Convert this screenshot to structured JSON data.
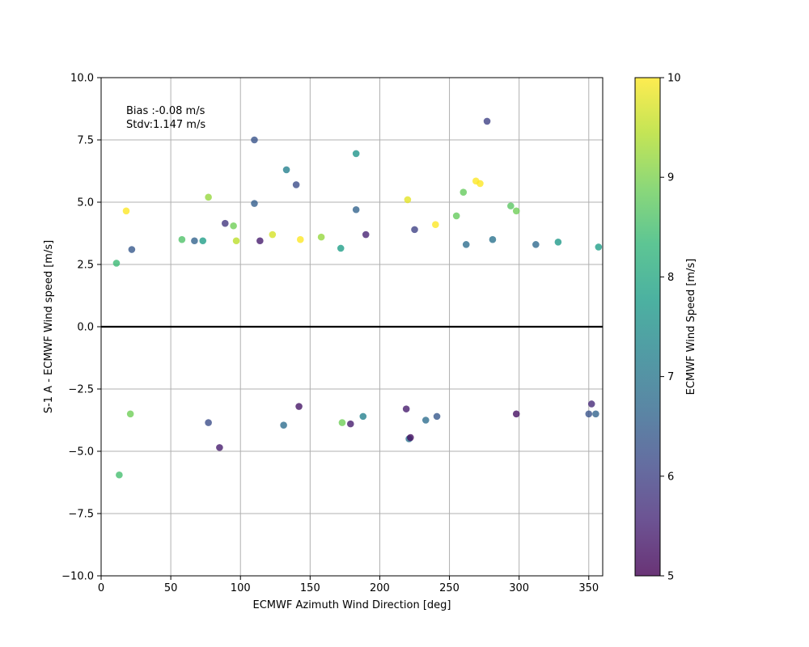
{
  "chart_data": {
    "type": "scatter",
    "xlabel": "ECMWF Azimuth Wind Direction [deg]",
    "ylabel": "S-1 A - ECMWF Wind speed [m/s]",
    "xlim": [
      0,
      360
    ],
    "ylim": [
      -10,
      10
    ],
    "x_ticks": [
      0,
      50,
      100,
      150,
      200,
      250,
      300,
      350
    ],
    "x_tick_labels": [
      "0",
      "50",
      "100",
      "150",
      "200",
      "250",
      "300",
      "350"
    ],
    "y_ticks": [
      -10,
      -7.5,
      -5,
      -2.5,
      0,
      2.5,
      5,
      7.5,
      10
    ],
    "y_tick_labels": [
      "−10.0",
      "−7.5",
      "−5.0",
      "−2.5",
      "0.0",
      "2.5",
      "5.0",
      "7.5",
      "10.0"
    ],
    "grid": true,
    "zero_line": 0,
    "annotations": {
      "bias": "Bias :-0.08 m/s",
      "stdv": "Stdv:1.147 m/s"
    },
    "colorbar": {
      "label": "ECMWF Wind Speed [m/s]",
      "range": [
        5,
        10
      ],
      "ticks": [
        5,
        6,
        7,
        8,
        9,
        10
      ],
      "tick_labels": [
        "5",
        "6",
        "7",
        "8",
        "9",
        "10"
      ],
      "colormap": "viridis",
      "colormap_stops": [
        "#440154",
        "#482878",
        "#3e4989",
        "#31688e",
        "#26828e",
        "#1f9e89",
        "#35b779",
        "#6ece58",
        "#b5de2b",
        "#fde725"
      ]
    },
    "marker_alpha": 0.8,
    "points": [
      [
        18,
        4.65,
        10.0
      ],
      [
        22,
        3.1,
        6.4
      ],
      [
        77,
        5.2,
        9.2
      ],
      [
        89,
        4.15,
        5.8
      ],
      [
        95,
        4.05,
        8.9
      ],
      [
        110,
        7.5,
        6.3
      ],
      [
        110,
        4.95,
        6.5
      ],
      [
        133,
        6.3,
        7.2
      ],
      [
        140,
        5.7,
        6.2
      ],
      [
        183,
        6.95,
        7.6
      ],
      [
        183,
        4.7,
        6.6
      ],
      [
        220,
        5.1,
        9.8
      ],
      [
        240,
        4.1,
        10.0
      ],
      [
        255,
        4.45,
        8.8
      ],
      [
        260,
        5.4,
        8.8
      ],
      [
        269,
        5.85,
        10.0
      ],
      [
        272,
        5.75,
        10.0
      ],
      [
        277,
        8.25,
        6.0
      ],
      [
        294,
        4.85,
        8.7
      ],
      [
        298,
        4.65,
        8.9
      ],
      [
        13,
        -5.95,
        8.5
      ],
      [
        85,
        -4.85,
        5.4
      ],
      [
        131,
        -3.95,
        6.8
      ],
      [
        221,
        -4.5,
        6.9
      ],
      [
        222,
        -4.45,
        5.2
      ],
      [
        219,
        -3.3,
        5.4
      ],
      [
        298,
        -3.5,
        5.2
      ],
      [
        11,
        2.55,
        8.4
      ],
      [
        58,
        3.5,
        8.6
      ],
      [
        67,
        3.45,
        6.6
      ],
      [
        73,
        3.45,
        7.8
      ],
      [
        97,
        3.45,
        9.5
      ],
      [
        114,
        3.45,
        5.4
      ],
      [
        123,
        3.7,
        9.7
      ],
      [
        143,
        3.5,
        10.0
      ],
      [
        158,
        3.6,
        9.2
      ],
      [
        172,
        3.15,
        7.8
      ],
      [
        190,
        3.7,
        5.5
      ],
      [
        225,
        3.9,
        6.0
      ],
      [
        262,
        3.3,
        6.8
      ],
      [
        281,
        3.5,
        6.9
      ],
      [
        328,
        3.4,
        7.7
      ],
      [
        357,
        3.2,
        7.8
      ],
      [
        312,
        3.3,
        6.7
      ],
      [
        77,
        -3.85,
        6.2
      ],
      [
        173,
        -3.85,
        8.9
      ],
      [
        179,
        -3.9,
        5.4
      ],
      [
        233,
        -3.75,
        6.8
      ],
      [
        241,
        -3.6,
        6.4
      ],
      [
        188,
        -3.6,
        7.2
      ],
      [
        21,
        -3.5,
        8.9
      ],
      [
        142,
        -3.2,
        5.3
      ],
      [
        350,
        -3.5,
        6.3
      ],
      [
        355,
        -3.5,
        6.6
      ],
      [
        352,
        -3.1,
        5.6
      ]
    ]
  }
}
